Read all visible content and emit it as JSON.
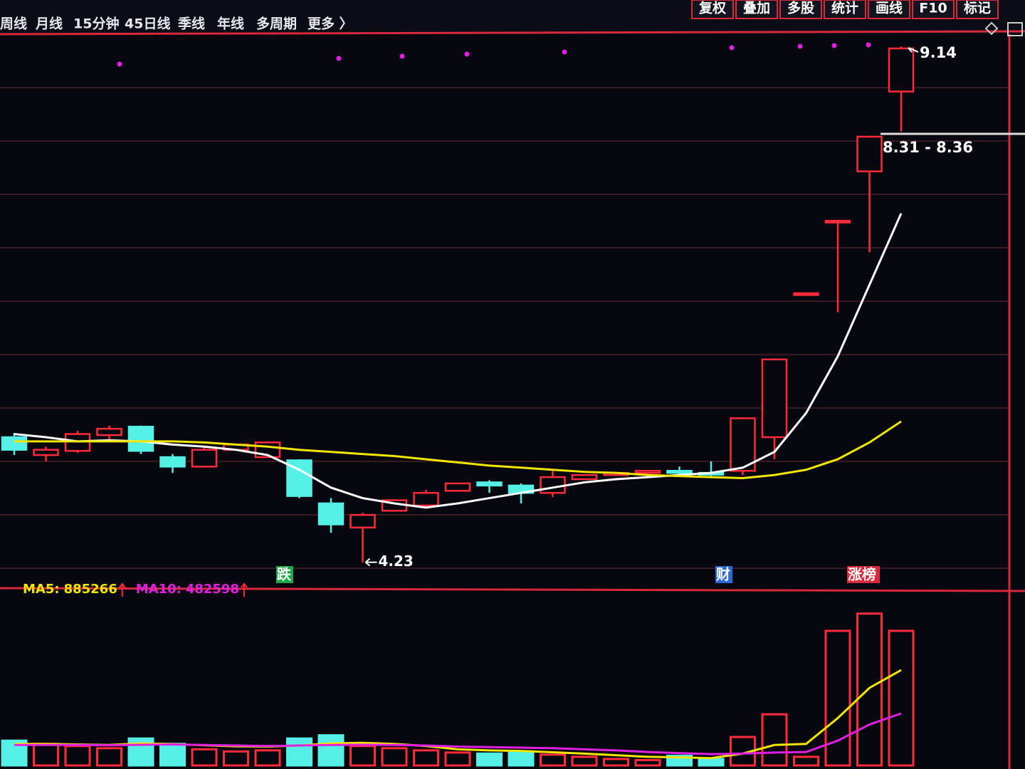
{
  "toolbar": {
    "tabs": [
      "周线",
      "月线",
      "15分钟",
      "45日线",
      "季线",
      "年线",
      "多周期",
      "更多 〉"
    ],
    "buttons": [
      "复权",
      "叠加",
      "多股",
      "统计",
      "画线",
      "F10",
      "标记"
    ]
  },
  "chart_data": [
    {
      "type": "candlestick",
      "categories": [
        null,
        null,
        null,
        null,
        null,
        null,
        null,
        null,
        null,
        null,
        null,
        null,
        null,
        null,
        null,
        null,
        null,
        null,
        null,
        null,
        null,
        null,
        null,
        null,
        null,
        null,
        null,
        null,
        null
      ],
      "open": [
        5.42,
        5.25,
        5.29,
        5.44,
        5.52,
        5.23,
        5.14,
        5.3,
        5.23,
        5.2,
        4.79,
        4.56,
        4.72,
        4.77,
        4.91,
        4.99,
        4.96,
        4.89,
        5.02,
        5.06,
        5.08,
        5.1,
        5.08,
        5.1,
        5.42,
        6.79,
        7.48,
        7.95,
        8.71
      ],
      "high": [
        5.46,
        5.33,
        5.48,
        5.53,
        5.53,
        5.26,
        5.33,
        5.35,
        5.38,
        5.21,
        4.84,
        4.7,
        4.82,
        4.92,
        4.98,
        5.01,
        4.98,
        5.1,
        5.06,
        5.08,
        5.1,
        5.14,
        5.19,
        5.61,
        6.17,
        6.79,
        7.48,
        8.29,
        9.14
      ],
      "low": [
        5.25,
        5.19,
        5.27,
        5.38,
        5.26,
        5.08,
        5.14,
        5.3,
        5.23,
        4.84,
        4.51,
        4.23,
        4.72,
        4.76,
        4.91,
        4.89,
        4.79,
        4.85,
        5.02,
        5.06,
        5.08,
        5.06,
        5.03,
        5.06,
        5.21,
        6.79,
        6.61,
        7.18,
        8.33
      ],
      "close": [
        5.3,
        5.3,
        5.45,
        5.5,
        5.29,
        5.14,
        5.3,
        5.35,
        5.37,
        4.86,
        4.59,
        4.68,
        4.82,
        4.89,
        4.98,
        4.96,
        4.89,
        5.04,
        5.06,
        5.08,
        5.1,
        5.08,
        5.07,
        5.6,
        6.16,
        6.79,
        7.48,
        8.28,
        9.12
      ],
      "ma_lines": [
        {
          "color": "#ffffff",
          "values": [
            5.45,
            5.42,
            5.38,
            5.39,
            5.38,
            5.35,
            5.33,
            5.3,
            5.25,
            5.11,
            4.94,
            4.84,
            4.79,
            4.75,
            4.79,
            4.84,
            4.89,
            4.94,
            4.99,
            5.02,
            5.04,
            5.06,
            5.08,
            5.13,
            5.28,
            5.65,
            6.19,
            6.87,
            7.55
          ]
        },
        {
          "color": "#f2e600",
          "values": [
            5.38,
            5.38,
            5.38,
            5.38,
            5.38,
            5.38,
            5.37,
            5.35,
            5.33,
            5.3,
            5.28,
            5.26,
            5.24,
            5.21,
            5.18,
            5.15,
            5.13,
            5.11,
            5.09,
            5.08,
            5.06,
            5.05,
            5.04,
            5.03,
            5.06,
            5.11,
            5.21,
            5.37,
            5.57
          ]
        }
      ],
      "up_color": "#ff2a3a",
      "down_color": "#54f0e6",
      "ylim": [
        3.99,
        9.31
      ],
      "crosshair_readout": "8.31 - 8.36",
      "event_markers": [
        {
          "text": "跌",
          "color": "#1fa84a"
        },
        {
          "text": "财",
          "color": "#2a6ad8"
        },
        {
          "text": "涨榜",
          "color": "#d8283a"
        }
      ]
    },
    {
      "type": "bar",
      "values": [
        230000,
        200000,
        180000,
        160000,
        250000,
        200000,
        150000,
        130000,
        140000,
        250000,
        280000,
        180000,
        160000,
        140000,
        120000,
        110000,
        130000,
        100000,
        80000,
        60000,
        50000,
        90000,
        60000,
        264000,
        475000,
        80000,
        1250000,
        1410000,
        1250000
      ],
      "lines": [
        {
          "name": "MA5:",
          "color": "#f2e600",
          "values": [
            200000,
            200000,
            195000,
            190000,
            205000,
            198000,
            188000,
            178000,
            175000,
            185000,
            205000,
            210000,
            200000,
            180000,
            150000,
            140000,
            135000,
            122000,
            110000,
            95000,
            80000,
            75000,
            68000,
            110000,
            190000,
            200000,
            440000,
            720000,
            885266
          ]
        },
        {
          "name": "MA10:",
          "color": "#e020e0",
          "values": [
            190000,
            190000,
            190000,
            188000,
            192000,
            195000,
            190000,
            185000,
            180000,
            185000,
            190000,
            192000,
            190000,
            185000,
            175000,
            170000,
            165000,
            160000,
            150000,
            140000,
            125000,
            115000,
            105000,
            110000,
            120000,
            125000,
            230000,
            380000,
            482598
          ]
        }
      ],
      "ylim": [
        0,
        1620000
      ]
    }
  ]
}
